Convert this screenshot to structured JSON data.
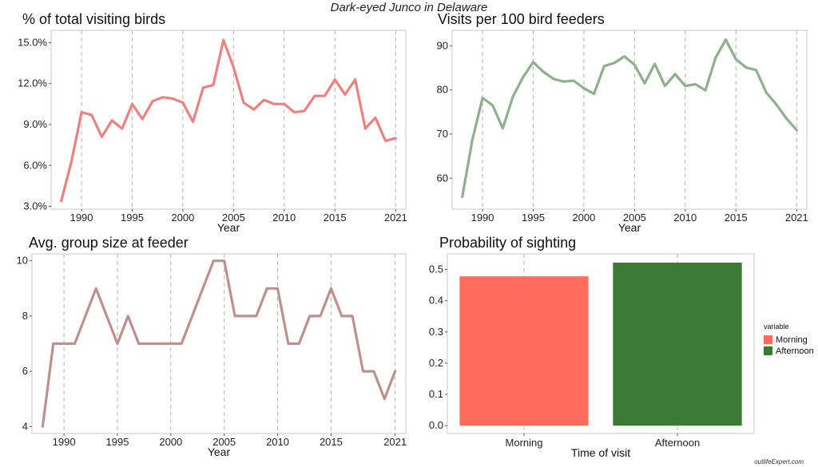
{
  "suptitle": "Dark-eyed Junco in Delaware",
  "watermark": "outlifeExpert.com",
  "chart_data": [
    {
      "type": "line",
      "title": "% of total visiting birds",
      "xlabel": "Year",
      "ylabel": "",
      "color": "#f08080",
      "xlim": [
        1987,
        2022
      ],
      "ylim": [
        2.8,
        15.9
      ],
      "xticks": [
        1990,
        1995,
        2000,
        2005,
        2010,
        2015,
        2021
      ],
      "yticks": [
        3.0,
        6.0,
        9.0,
        12.0,
        15.0
      ],
      "ytick_labels": [
        "3.0%",
        "6.0%",
        "9.0%",
        "12.0%",
        "15.0%"
      ],
      "x": [
        1988,
        1989,
        1990,
        1991,
        1992,
        1993,
        1994,
        1995,
        1996,
        1997,
        1998,
        1999,
        2000,
        2001,
        2002,
        2003,
        2004,
        2005,
        2006,
        2007,
        2008,
        2009,
        2010,
        2011,
        2012,
        2013,
        2014,
        2015,
        2016,
        2017,
        2018,
        2019,
        2020,
        2021
      ],
      "values": [
        3.4,
        6.3,
        9.9,
        9.7,
        8.1,
        9.3,
        8.7,
        10.5,
        9.4,
        10.7,
        11.0,
        10.9,
        10.6,
        9.2,
        11.7,
        11.9,
        15.2,
        13.2,
        10.6,
        10.1,
        10.8,
        10.5,
        10.5,
        9.9,
        10.0,
        11.1,
        11.1,
        12.3,
        11.2,
        12.3,
        8.7,
        9.5,
        7.8,
        8.0
      ]
    },
    {
      "type": "line",
      "title": "Visits per 100 bird feeders",
      "xlabel": "Year",
      "ylabel": "",
      "color": "#8fb08f",
      "xlim": [
        1987,
        2022
      ],
      "ylim": [
        53,
        93.5
      ],
      "xticks": [
        1990,
        1995,
        2000,
        2005,
        2010,
        2015,
        2021
      ],
      "yticks": [
        60,
        70,
        80,
        90
      ],
      "ytick_labels": [
        "60",
        "70",
        "80",
        "90"
      ],
      "x": [
        1988,
        1989,
        1990,
        1991,
        1992,
        1993,
        1994,
        1995,
        1996,
        1997,
        1998,
        1999,
        2000,
        2001,
        2002,
        2003,
        2004,
        2005,
        2006,
        2007,
        2008,
        2009,
        2010,
        2011,
        2012,
        2013,
        2014,
        2015,
        2016,
        2017,
        2018,
        2019,
        2020,
        2021
      ],
      "values": [
        55.8,
        68.8,
        78.2,
        76.5,
        71.3,
        78.5,
        82.9,
        86.3,
        84.1,
        82.5,
        81.9,
        82.1,
        80.4,
        79.1,
        85.4,
        86.1,
        87.6,
        85.7,
        81.5,
        85.9,
        80.9,
        83.6,
        80.9,
        81.3,
        79.9,
        87.3,
        91.4,
        87.0,
        85.1,
        84.5,
        79.4,
        76.7,
        73.5,
        70.9
      ]
    },
    {
      "type": "line",
      "title": "Avg. group size at feeder",
      "xlabel": "Year",
      "ylabel": "",
      "color": "#c09090",
      "xlim": [
        1987,
        2022
      ],
      "ylim": [
        3.75,
        10.25
      ],
      "xticks": [
        1990,
        1995,
        2000,
        2005,
        2010,
        2015,
        2021
      ],
      "yticks": [
        4,
        6,
        8,
        10
      ],
      "ytick_labels": [
        "4",
        "6",
        "8",
        "10"
      ],
      "x": [
        1988,
        1989,
        1990,
        1991,
        1992,
        1993,
        1994,
        1995,
        1996,
        1997,
        1998,
        1999,
        2000,
        2001,
        2002,
        2003,
        2004,
        2005,
        2006,
        2007,
        2008,
        2009,
        2010,
        2011,
        2012,
        2013,
        2014,
        2015,
        2016,
        2017,
        2018,
        2019,
        2020,
        2021
      ],
      "values": [
        4,
        7,
        7,
        7,
        8,
        9,
        8,
        7,
        8,
        7,
        7,
        7,
        7,
        7,
        8,
        9,
        10,
        10,
        8,
        8,
        8,
        9,
        9,
        7,
        7,
        8,
        8,
        9,
        8,
        8,
        6,
        6,
        5,
        6
      ]
    },
    {
      "type": "bar",
      "title": "Probability of sighting",
      "xlabel": "Time of visit",
      "ylabel": "",
      "categories": [
        "Morning",
        "Afternoon"
      ],
      "values": [
        0.478,
        0.522
      ],
      "colors": [
        "#ff6c5e",
        "#3b7a34"
      ],
      "ylim": [
        -0.025,
        0.55
      ],
      "yticks": [
        0.0,
        0.1,
        0.2,
        0.3,
        0.4,
        0.5
      ],
      "ytick_labels": [
        "0.0",
        "0.1",
        "0.2",
        "0.3",
        "0.4",
        "0.5"
      ],
      "legend": {
        "title": "variable",
        "entries": [
          "Morning",
          "Afternoon"
        ],
        "position": "right"
      }
    }
  ]
}
